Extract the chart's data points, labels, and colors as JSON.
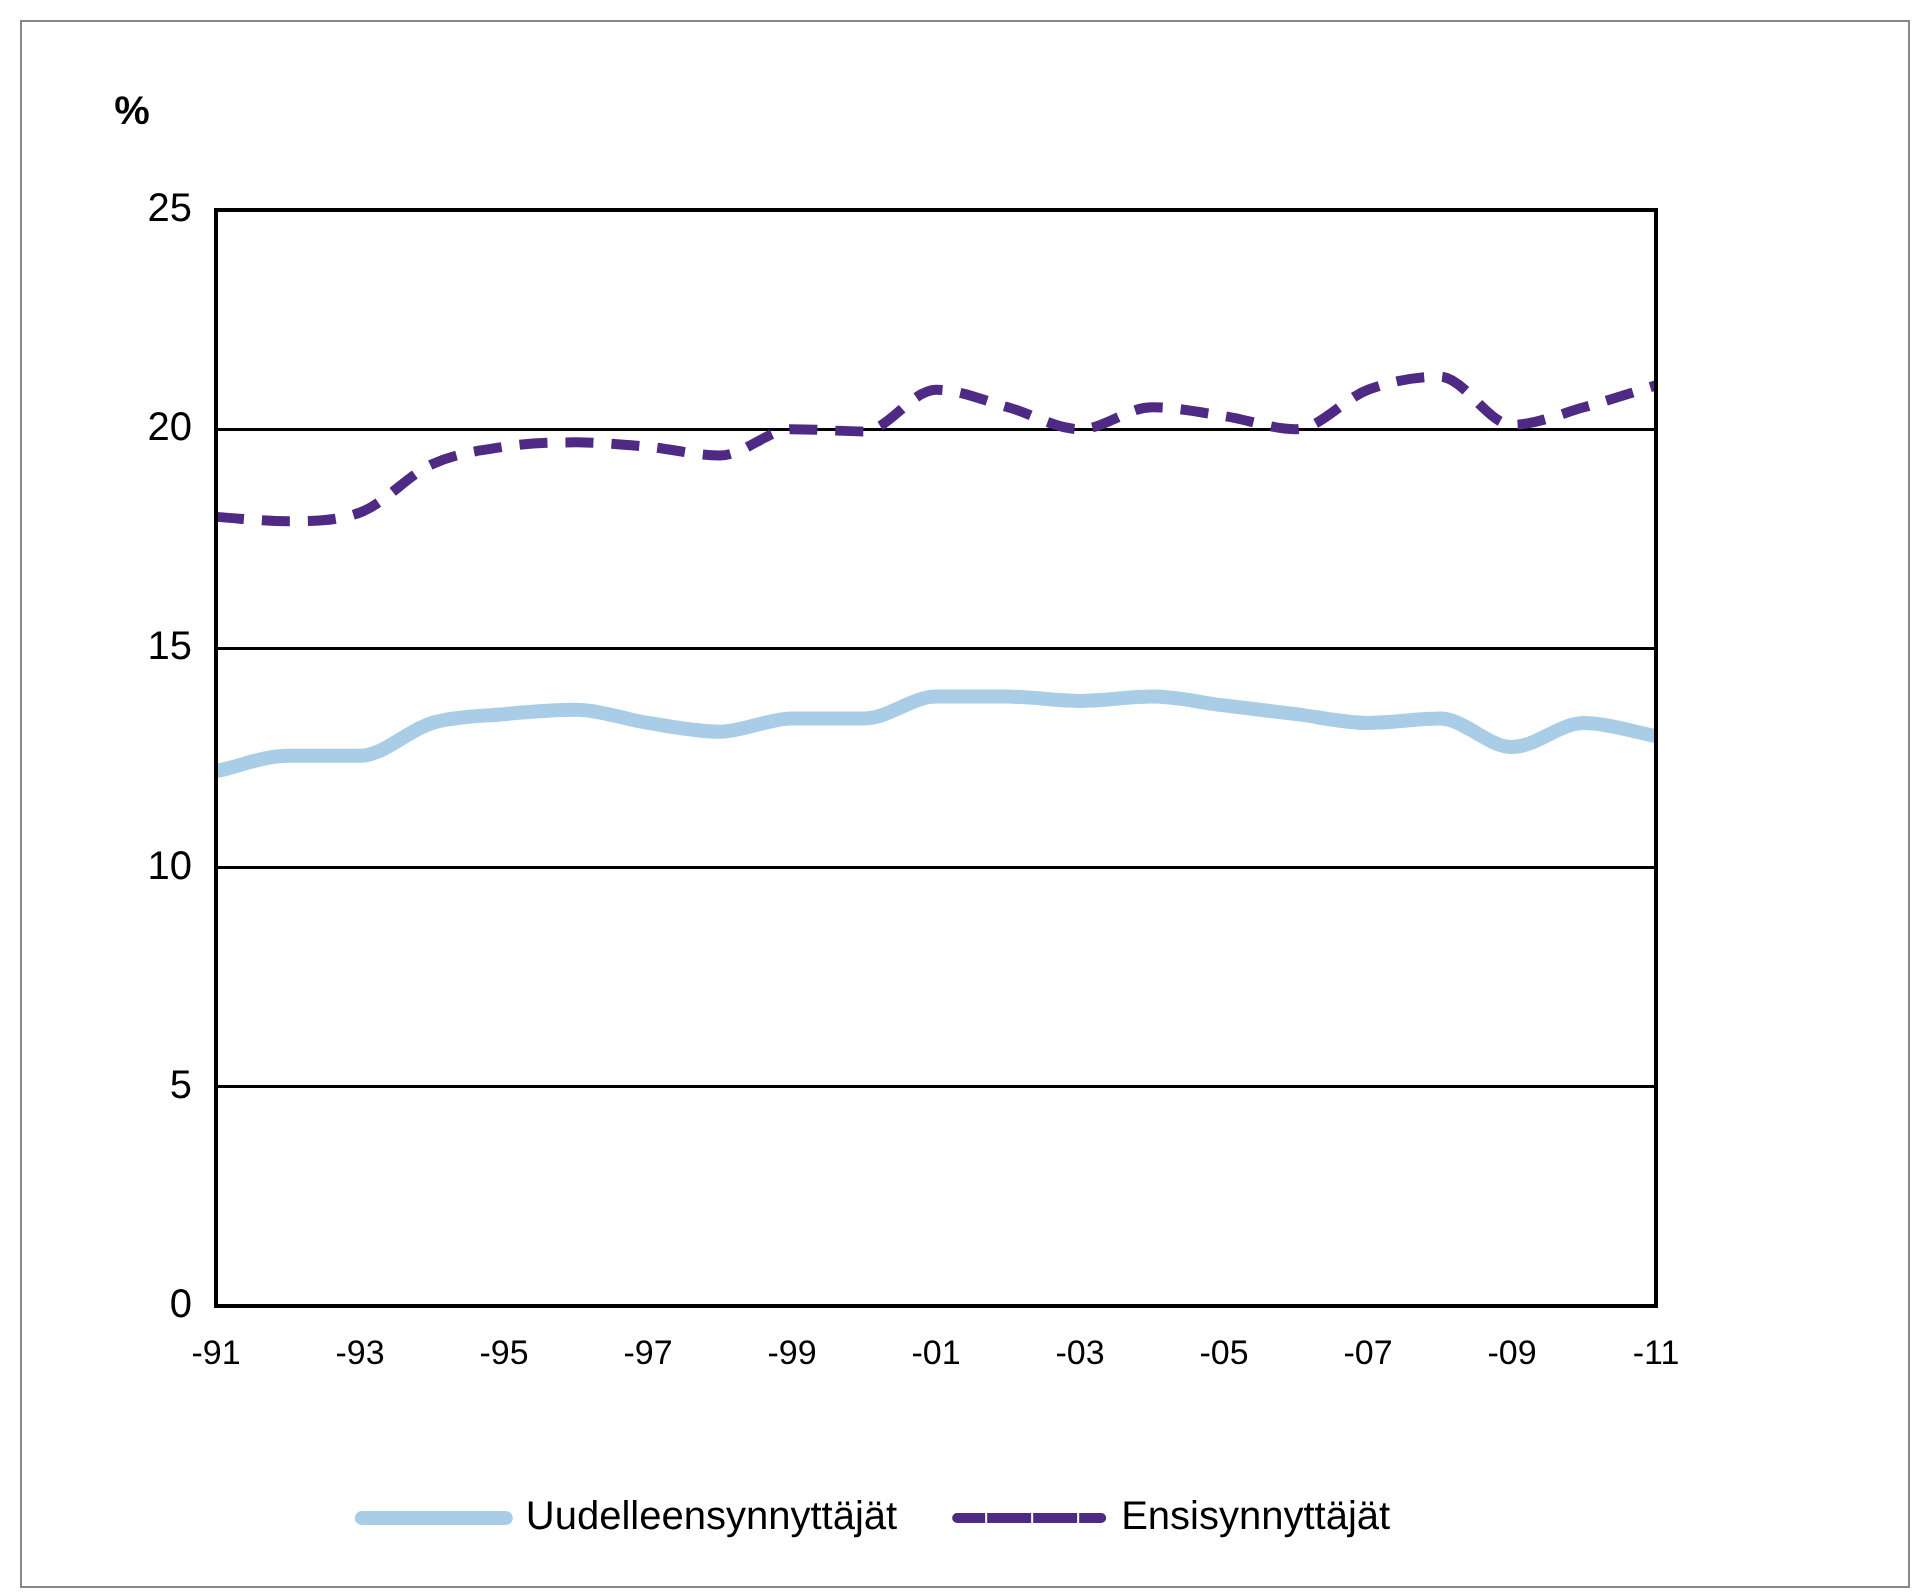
{
  "chart_data": {
    "type": "line",
    "ylabel": "%",
    "categories": [
      "-91",
      null,
      "-93",
      null,
      "-95",
      null,
      "-97",
      null,
      "-99",
      null,
      "-01",
      null,
      "-03",
      null,
      "-05",
      null,
      "-07",
      null,
      "-09",
      null,
      "-11"
    ],
    "series": [
      {
        "name": "Uudelleensynnyttäjät",
        "color": "#a9cde6",
        "line_style": "solid",
        "values": [
          12.2,
          12.55,
          12.55,
          13.3,
          13.5,
          13.6,
          13.3,
          13.1,
          13.4,
          13.4,
          13.9,
          13.9,
          13.8,
          13.9,
          13.7,
          13.5,
          13.3,
          13.4,
          12.75,
          13.3,
          13.0
        ]
      },
      {
        "name": "Ensisynnyttäjät",
        "color": "#4e2a84",
        "line_style": "dashed",
        "values": [
          18.0,
          17.9,
          18.1,
          19.2,
          19.6,
          19.7,
          19.6,
          19.4,
          20.0,
          19.95,
          20.9,
          20.5,
          20.0,
          20.5,
          20.3,
          20.0,
          20.9,
          21.2,
          20.1,
          20.5,
          21.0
        ]
      }
    ],
    "ylim": [
      0,
      25
    ],
    "yticks": [
      0,
      5,
      10,
      15,
      20,
      25
    ],
    "grid": "y",
    "legend": "bottom",
    "marker": "none"
  }
}
